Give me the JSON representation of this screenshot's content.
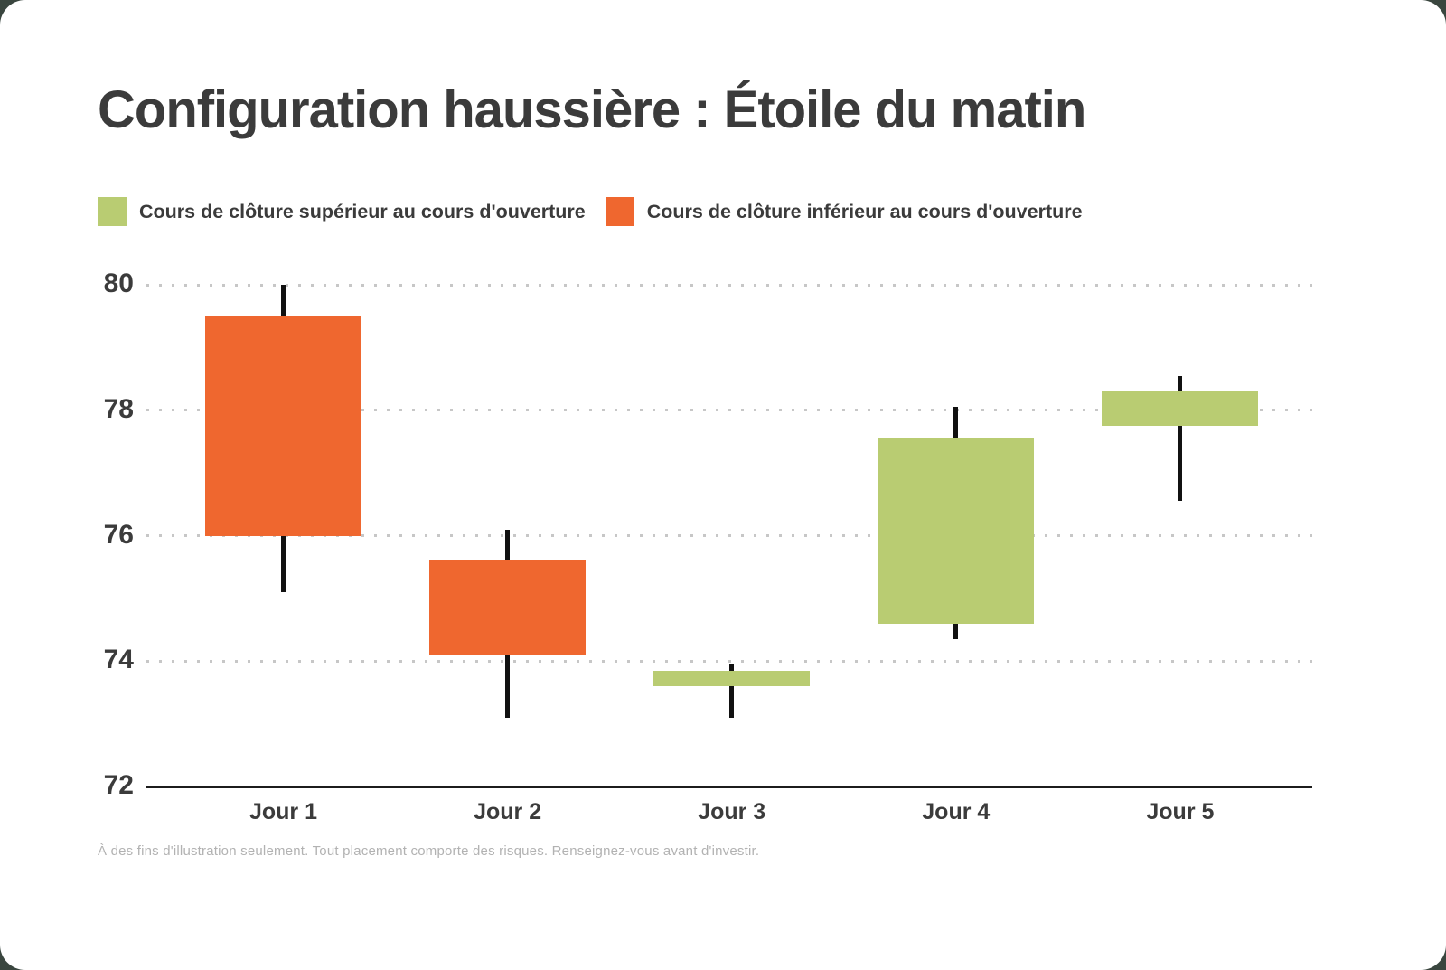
{
  "title": "Configuration haussière : Étoile du matin",
  "legend": {
    "bullish_label": "Cours de clôture supérieur au cours d'ouverture",
    "bearish_label": "Cours de clôture inférieur au cours d'ouverture"
  },
  "footer": "À des fins d'illustration seulement. Tout placement comporte des risques. Renseignez-vous avant d'investir.",
  "chart_data": {
    "type": "candlestick",
    "title": "Configuration haussière : Étoile du matin",
    "categories": [
      "Jour 1",
      "Jour 2",
      "Jour 3",
      "Jour 4",
      "Jour 5"
    ],
    "series": [
      {
        "day": "Jour 1",
        "open": 79.5,
        "high": 80.0,
        "low": 75.1,
        "close": 76.0,
        "direction": "bearish"
      },
      {
        "day": "Jour 2",
        "open": 75.6,
        "high": 76.1,
        "low": 73.1,
        "close": 74.1,
        "direction": "bearish"
      },
      {
        "day": "Jour 3",
        "open": 73.6,
        "high": 73.95,
        "low": 73.1,
        "close": 73.85,
        "direction": "bullish"
      },
      {
        "day": "Jour 4",
        "open": 74.6,
        "high": 78.05,
        "low": 74.35,
        "close": 77.55,
        "direction": "bullish"
      },
      {
        "day": "Jour 5",
        "open": 77.75,
        "high": 78.55,
        "low": 76.55,
        "close": 78.3,
        "direction": "bullish"
      }
    ],
    "y_ticks": [
      80,
      78,
      76,
      74,
      72
    ],
    "ylim": [
      72,
      80.35
    ],
    "grid": "horizontal-dotted",
    "legend_position": "top-left",
    "colors": {
      "bullish": "#B9CC72",
      "bearish": "#EF672F",
      "wick": "#111111",
      "text": "#3B3B3B",
      "gridline": "#C7C7C7",
      "axis": "#1C1C1C",
      "footer_text": "#B2B2B2",
      "card_background": "#FFFFFF"
    }
  }
}
